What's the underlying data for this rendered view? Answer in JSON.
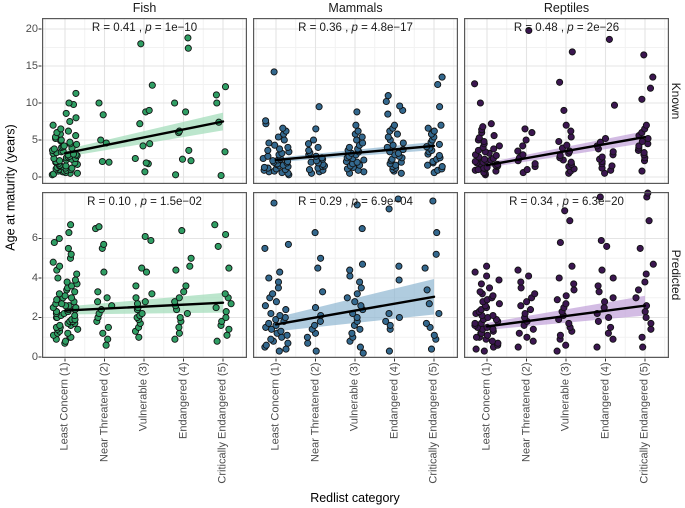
{
  "figure": {
    "y_axis_title": "Age at maturity (years)",
    "x_axis_title": "Redlist category",
    "col_titles": [
      "Fish",
      "Mammals",
      "Reptiles"
    ],
    "row_titles": [
      "Known",
      "Predicted"
    ]
  },
  "chart_data": {
    "type": "scatter",
    "title": "",
    "xlabel": "Redlist category",
    "ylabel": "Age at maturity (years)",
    "facet_columns": [
      "Fish",
      "Mammals",
      "Reptiles"
    ],
    "facet_rows": [
      "Known",
      "Predicted"
    ],
    "x_categories": [
      "Least Concern (1)",
      "Near Threatened (2)",
      "Vulnerable (3)",
      "Endangered (4)",
      "Critically Endangered (5)"
    ],
    "grid": true,
    "rows": [
      {
        "label": "Known",
        "ylim": [
          0,
          21.5
        ],
        "yticks": [
          0,
          5,
          10,
          15,
          20
        ],
        "yminor": [
          2.5,
          7.5,
          12.5,
          17.5
        ]
      },
      {
        "label": "Predicted",
        "ylim": [
          0,
          8.4
        ],
        "yticks": [
          0,
          2,
          4,
          6
        ],
        "yminor": [
          1,
          3,
          5,
          7
        ]
      }
    ],
    "panels": [
      {
        "id": "fish-known",
        "row": 0,
        "col": 0,
        "r_label": "R = 0.41 ,",
        "p_label": "p",
        "p_value": "= 1e−10",
        "point_color": "#2f9e64",
        "band_color": "#9fdcb8",
        "trend": {
          "x": [
            1,
            5
          ],
          "y1": 3.2,
          "y2": 7.5,
          "w1": 0.5,
          "w2": 1.2
        },
        "points": [
          [
            0.3,
            0.4,
            0.5,
            0.5,
            0.6,
            0.7,
            0.8,
            0.8,
            0.9,
            1.0,
            1.0,
            1.1,
            1.2,
            1.2,
            1.3,
            1.4,
            1.5,
            1.5,
            1.6,
            1.7,
            1.8,
            1.9,
            2.0,
            2.0,
            2.1,
            2.2,
            2.3,
            2.4,
            2.5,
            2.5,
            2.6,
            2.7,
            2.8,
            2.9,
            3.0,
            3.0,
            3.1,
            3.2,
            3.3,
            3.4,
            3.5,
            3.6,
            3.8,
            3.9,
            4.0,
            4.1,
            4.2,
            4.4,
            4.5,
            4.7,
            4.9,
            5.0,
            5.2,
            5.4,
            5.6,
            5.8,
            6.0,
            6.2,
            6.5,
            7.0,
            7.5,
            8.0,
            8.6,
            9.8,
            10.0,
            11.3
          ],
          [
            2.0,
            2.1,
            4.6,
            5.0,
            8.4,
            10.0
          ],
          [
            0.7,
            1.8,
            1.9,
            2.5,
            4.2,
            4.5,
            7.2,
            8.8,
            9.0,
            12.4,
            18.0
          ],
          [
            0.3,
            2.2,
            2.4,
            3.6,
            6.0,
            6.2,
            8.8,
            10.0,
            17.4,
            18.8
          ],
          [
            0.2,
            3.4,
            7.4,
            10.0,
            11.1,
            12.2
          ]
        ]
      },
      {
        "id": "mammals-known",
        "row": 0,
        "col": 1,
        "r_label": "R = 0.36 ,",
        "p_label": "p",
        "p_value": "= 4.8e−17",
        "point_color": "#33688e",
        "band_color": "#8fb7d2",
        "trend": {
          "x": [
            1,
            5
          ],
          "y1": 2.3,
          "y2": 4.2,
          "w1": 0.3,
          "w2": 0.55
        },
        "points": [
          [
            0.3,
            0.5,
            0.6,
            0.7,
            0.8,
            0.9,
            1.0,
            1.1,
            1.2,
            1.3,
            1.4,
            1.5,
            1.6,
            1.7,
            1.8,
            1.9,
            2.0,
            2.1,
            2.2,
            2.3,
            2.4,
            2.5,
            2.6,
            2.8,
            3.0,
            3.2,
            3.4,
            3.6,
            3.8,
            4.0,
            4.3,
            4.6,
            5.0,
            5.4,
            5.8,
            6.2,
            6.6,
            7.2,
            7.6,
            14.2
          ],
          [
            0.5,
            0.7,
            0.9,
            1.0,
            1.2,
            1.4,
            1.5,
            1.7,
            1.9,
            2.0,
            2.2,
            2.4,
            2.6,
            2.8,
            3.0,
            3.3,
            3.6,
            4.0,
            4.5,
            5.0,
            6.5,
            9.5
          ],
          [
            0.5,
            0.7,
            0.9,
            1.1,
            1.3,
            1.5,
            1.6,
            1.8,
            2.0,
            2.1,
            2.3,
            2.5,
            2.6,
            2.8,
            3.0,
            3.2,
            3.4,
            3.6,
            3.8,
            4.0,
            4.3,
            4.6,
            5.0,
            5.4,
            5.8,
            6.2,
            7.0,
            8.8
          ],
          [
            0.5,
            0.8,
            1.0,
            1.2,
            1.4,
            1.6,
            1.8,
            2.0,
            2.2,
            2.4,
            2.6,
            2.8,
            3.0,
            3.2,
            3.4,
            3.7,
            4.0,
            4.3,
            4.6,
            5.0,
            5.4,
            5.8,
            6.2,
            6.6,
            7.0,
            8.5,
            9.0,
            9.6,
            10.2,
            11.0
          ],
          [
            0.6,
            0.9,
            1.1,
            1.4,
            1.6,
            1.9,
            2.1,
            2.4,
            2.6,
            2.9,
            3.1,
            3.4,
            3.6,
            3.9,
            4.1,
            4.4,
            4.7,
            5.0,
            5.4,
            5.8,
            6.2,
            6.6,
            7.0,
            9.5,
            12.5,
            13.5
          ]
        ]
      },
      {
        "id": "reptiles-known",
        "row": 0,
        "col": 2,
        "r_label": "R = 0.48 ,",
        "p_label": "p",
        "p_value": "= 2e−26",
        "point_color": "#3b1650",
        "band_color": "#c0a0d8",
        "trend": {
          "x": [
            1,
            5
          ],
          "y1": 1.6,
          "y2": 5.4,
          "w1": 0.35,
          "w2": 0.8
        },
        "points": [
          [
            0.3,
            0.5,
            0.6,
            0.8,
            0.9,
            1.0,
            1.1,
            1.2,
            1.3,
            1.4,
            1.5,
            1.6,
            1.7,
            1.8,
            1.9,
            2.0,
            2.1,
            2.2,
            2.3,
            2.4,
            2.5,
            2.7,
            2.9,
            3.0,
            3.2,
            3.4,
            3.6,
            3.8,
            4.0,
            4.2,
            4.5,
            4.8,
            5.0,
            5.3,
            5.6,
            6.0,
            6.4,
            6.8,
            7.2,
            10.0,
            12.6
          ],
          [
            0.6,
            1.0,
            1.4,
            1.8,
            2.2,
            2.6,
            3.0,
            3.5,
            4.2,
            5.0,
            6.0,
            6.5,
            19.8
          ],
          [
            0.5,
            0.8,
            1.1,
            1.4,
            1.7,
            2.0,
            2.3,
            2.6,
            2.9,
            3.2,
            3.5,
            3.9,
            4.3,
            4.8,
            5.4,
            6.2,
            7.0,
            9.0,
            12.8,
            16.9
          ],
          [
            0.5,
            0.9,
            1.2,
            1.5,
            1.8,
            2.1,
            2.4,
            2.7,
            3.0,
            3.4,
            3.8,
            4.2,
            4.7,
            5.2,
            9.7,
            18.6
          ],
          [
            0.8,
            2.2,
            2.6,
            3.0,
            3.3,
            3.6,
            3.9,
            4.2,
            4.5,
            4.8,
            5.2,
            5.6,
            6.0,
            6.5,
            7.0,
            10.5,
            12.0,
            13.5,
            16.5
          ]
        ]
      },
      {
        "id": "fish-predicted",
        "row": 1,
        "col": 0,
        "r_label": "R = 0.10 ,",
        "p_label": "p",
        "p_value": "= 1.5e−02",
        "point_color": "#2f9e64",
        "band_color": "#9fdcb8",
        "trend": {
          "x": [
            1,
            5
          ],
          "y1": 2.35,
          "y2": 2.75,
          "w1": 0.2,
          "w2": 0.5
        },
        "points": [
          [
            0.7,
            0.8,
            0.9,
            1.0,
            1.0,
            1.1,
            1.2,
            1.2,
            1.3,
            1.4,
            1.4,
            1.5,
            1.5,
            1.6,
            1.6,
            1.7,
            1.7,
            1.8,
            1.8,
            1.9,
            1.9,
            2.0,
            2.0,
            2.1,
            2.1,
            2.2,
            2.2,
            2.3,
            2.3,
            2.4,
            2.4,
            2.5,
            2.5,
            2.6,
            2.6,
            2.7,
            2.7,
            2.8,
            2.9,
            3.0,
            3.0,
            3.1,
            3.2,
            3.3,
            3.4,
            3.5,
            3.6,
            3.7,
            3.8,
            3.9,
            4.0,
            4.2,
            4.4,
            4.6,
            4.8,
            5.0,
            5.2,
            5.5,
            5.8,
            6.0,
            6.3,
            6.7
          ],
          [
            0.6,
            0.9,
            1.2,
            1.5,
            1.8,
            2.0,
            2.2,
            2.4,
            2.6,
            2.8,
            3.0,
            3.3,
            4.3,
            5.5,
            5.7,
            6.5,
            6.6
          ],
          [
            1.0,
            1.3,
            1.5,
            1.7,
            1.9,
            2.0,
            2.1,
            2.2,
            2.4,
            2.5,
            2.7,
            2.8,
            3.0,
            3.2,
            3.6,
            4.3,
            4.5,
            5.9,
            6.1
          ],
          [
            0.9,
            1.2,
            1.5,
            1.8,
            2.0,
            2.2,
            2.4,
            2.6,
            2.8,
            3.0,
            3.3,
            3.6,
            4.4,
            4.6,
            5.0,
            6.4
          ],
          [
            0.8,
            1.1,
            1.4,
            1.6,
            1.8,
            2.0,
            2.3,
            2.5,
            2.7,
            3.0,
            3.2,
            4.5,
            5.6,
            6.2,
            6.7
          ]
        ]
      },
      {
        "id": "mammals-predicted",
        "row": 1,
        "col": 1,
        "r_label": "R = 0.29 ,",
        "p_label": "p",
        "p_value": "= 6.9e−04",
        "point_color": "#33688e",
        "band_color": "#8fb7d2",
        "trend": {
          "x": [
            1,
            5
          ],
          "y1": 1.65,
          "y2": 3.05,
          "w1": 0.35,
          "w2": 0.9
        },
        "points": [
          [
            0.3,
            0.4,
            0.5,
            0.6,
            0.7,
            0.8,
            0.9,
            1.0,
            1.1,
            1.2,
            1.3,
            1.4,
            1.5,
            1.6,
            1.7,
            1.8,
            1.9,
            2.0,
            2.1,
            2.2,
            2.4,
            2.6,
            2.8,
            3.0,
            3.2,
            3.5,
            3.8,
            4.0,
            4.3,
            5.5,
            5.7,
            7.8
          ],
          [
            0.3,
            0.7,
            1.0,
            1.2,
            1.4,
            1.6,
            1.8,
            2.1,
            2.5,
            3.3,
            4.5,
            5.0,
            6.3
          ],
          [
            0.2,
            0.5,
            0.8,
            1.0,
            1.2,
            1.4,
            1.6,
            1.8,
            2.0,
            2.2,
            2.4,
            2.6,
            2.8,
            3.0,
            3.2,
            3.5,
            3.8,
            4.1,
            4.4,
            4.7,
            6.5,
            7.7
          ],
          [
            0.3,
            1.4,
            1.6,
            1.8,
            2.0,
            2.2,
            3.9,
            4.6,
            7.5,
            8.0
          ],
          [
            0.4,
            0.9,
            1.1,
            1.5,
            1.7,
            2.2,
            2.7,
            3.4,
            4.5,
            5.2,
            6.3,
            7.9
          ]
        ]
      },
      {
        "id": "reptiles-predicted",
        "row": 1,
        "col": 2,
        "r_label": "R = 0.34 ,",
        "p_label": "p",
        "p_value": "= 6.3e−20",
        "point_color": "#3b1650",
        "band_color": "#c0a0d8",
        "trend": {
          "x": [
            1,
            5
          ],
          "y1": 1.55,
          "y2": 2.6,
          "w1": 0.18,
          "w2": 0.5
        },
        "points": [
          [
            0.3,
            0.4,
            0.5,
            0.6,
            0.7,
            0.8,
            0.9,
            1.0,
            1.0,
            1.1,
            1.2,
            1.2,
            1.3,
            1.4,
            1.4,
            1.5,
            1.5,
            1.6,
            1.7,
            1.7,
            1.8,
            1.9,
            1.9,
            2.0,
            2.1,
            2.1,
            2.2,
            2.3,
            2.4,
            2.5,
            2.6,
            2.7,
            2.8,
            2.9,
            3.0,
            3.1,
            3.2,
            3.3,
            3.5,
            3.7,
            3.9,
            4.1,
            4.3,
            4.6
          ],
          [
            0.5,
            0.8,
            1.0,
            1.2,
            1.4,
            1.6,
            1.8,
            2.0,
            2.2,
            2.4,
            2.6,
            2.8,
            3.0,
            3.2,
            3.5,
            3.8,
            4.1,
            4.4
          ],
          [
            0.3,
            0.6,
            0.9,
            1.1,
            1.3,
            1.5,
            1.7,
            1.9,
            2.1,
            2.3,
            2.5,
            2.7,
            2.9,
            3.1,
            3.4,
            3.7,
            4.0,
            4.6,
            5.8,
            6.9,
            7.4
          ],
          [
            0.5,
            0.9,
            1.2,
            1.5,
            1.8,
            2.0,
            2.2,
            2.5,
            2.8,
            3.0,
            3.3,
            3.6,
            4.0,
            4.4,
            5.6,
            5.9,
            8.1
          ],
          [
            0.5,
            1.0,
            1.4,
            1.7,
            2.0,
            2.3,
            2.6,
            3.0,
            3.4,
            3.8,
            4.2,
            4.7,
            5.5,
            6.9,
            8.1,
            8.3
          ]
        ]
      }
    ],
    "style": {
      "trend_line_color": "#000000",
      "panel_border_color": "#595959",
      "grid_major_color": "#e4e4e4",
      "grid_minor_color": "#f2f2f2",
      "tick_text_color": "#4d4d4d"
    }
  }
}
